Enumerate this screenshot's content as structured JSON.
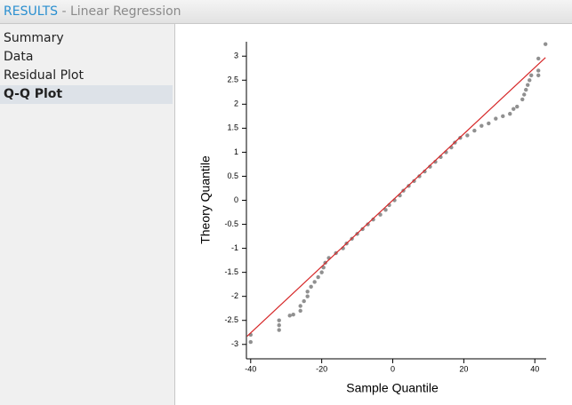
{
  "header": {
    "title": "RESULTS",
    "subtitle": "- Linear Regression"
  },
  "sidebar": {
    "items": [
      "Summary",
      "Data",
      "Residual Plot",
      "Q-Q Plot"
    ],
    "selected": 3
  },
  "chart_data": {
    "type": "scatter",
    "xlabel": "Sample Quantile",
    "ylabel": "Theory Quantile",
    "xlim": [
      -41.2,
      43.2
    ],
    "ylim": [
      -3.3,
      3.3
    ],
    "xticks": [
      -40,
      -20,
      0,
      20,
      40
    ],
    "yticks": [
      -3,
      -2.5,
      -2,
      -1.5,
      -1,
      -0.5,
      0,
      0.5,
      1,
      1.5,
      2,
      2.5,
      3
    ],
    "series": [
      {
        "color": "#555555",
        "x": [
          -40,
          -40,
          -32,
          -32,
          -32,
          -29,
          -28,
          -26,
          -26,
          -25,
          -24,
          -24,
          -23,
          -22,
          -21,
          -20,
          -19.5,
          -19,
          -18,
          -16,
          -14,
          -13,
          -11.5,
          -10,
          -8.5,
          -7,
          -5.5,
          -3.5,
          -2,
          -1,
          0.5,
          2,
          3,
          4.5,
          6,
          7.5,
          9,
          10.5,
          12,
          13.5,
          15,
          16.5,
          17.5,
          19,
          21,
          23,
          25,
          27,
          29,
          31,
          33,
          34,
          35,
          36.5,
          37,
          37.5,
          38,
          38.5,
          39,
          41,
          41,
          41,
          43
        ],
        "values": [
          -2.8,
          -2.95,
          -2.7,
          -2.6,
          -2.5,
          -2.4,
          -2.38,
          -2.3,
          -2.2,
          -2.1,
          -2.0,
          -1.9,
          -1.8,
          -1.7,
          -1.6,
          -1.5,
          -1.4,
          -1.3,
          -1.2,
          -1.1,
          -1.0,
          -0.9,
          -0.8,
          -0.7,
          -0.6,
          -0.5,
          -0.4,
          -0.3,
          -0.2,
          -0.1,
          0,
          0.1,
          0.2,
          0.3,
          0.4,
          0.5,
          0.6,
          0.7,
          0.8,
          0.9,
          1.0,
          1.1,
          1.2,
          1.3,
          1.35,
          1.45,
          1.55,
          1.6,
          1.7,
          1.75,
          1.8,
          1.9,
          1.95,
          2.1,
          2.2,
          2.3,
          2.4,
          2.5,
          2.6,
          2.6,
          2.7,
          2.95,
          3.25
        ]
      }
    ],
    "reference_line": {
      "color": "#d62728",
      "x": [
        -41,
        43
      ],
      "values": [
        -2.83,
        2.97
      ]
    }
  }
}
